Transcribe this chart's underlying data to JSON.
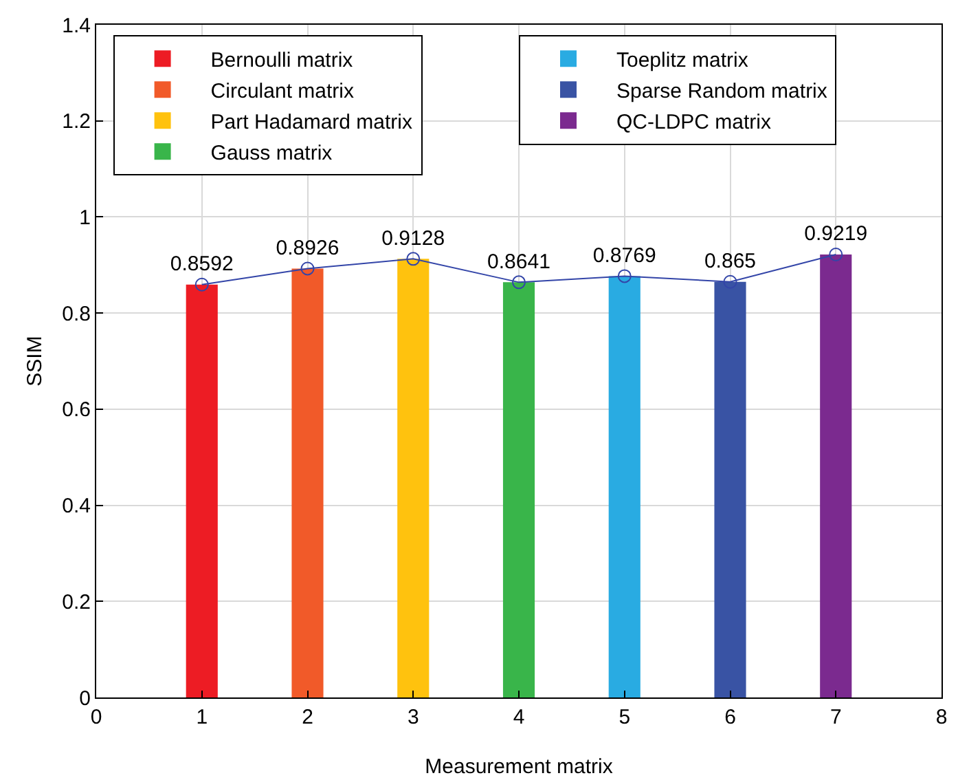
{
  "chart_data": {
    "type": "bar",
    "xlabel": "Measurement matrix",
    "ylabel": "SSIM",
    "xlim": [
      0,
      8
    ],
    "xticks": [
      0,
      1,
      2,
      3,
      4,
      5,
      6,
      7,
      8
    ],
    "ylim": [
      0,
      1.4
    ],
    "yticks": [
      0,
      0.2,
      0.4,
      0.6,
      0.8,
      1,
      1.2,
      1.4
    ],
    "grid": true,
    "legend": "top left",
    "series": [
      {
        "name": "Bernoulli matrix",
        "color": "#ed1c24",
        "x": [
          1
        ],
        "values": [
          0.8592
        ]
      },
      {
        "name": "Circulant matrix",
        "color": "#f15a29",
        "x": [
          2
        ],
        "values": [
          0.8926
        ]
      },
      {
        "name": "Part Hadamard matrix",
        "color": "#ffc20e",
        "x": [
          3
        ],
        "values": [
          0.9128
        ]
      },
      {
        "name": "Gauss matrix",
        "color": "#39b54a",
        "x": [
          4
        ],
        "values": [
          0.8641
        ]
      },
      {
        "name": "Toeplitz matrix",
        "color": "#29abe2",
        "x": [
          5
        ],
        "values": [
          0.8769
        ]
      },
      {
        "name": "Sparse Random matrix",
        "color": "#3953a4",
        "x": [
          6
        ],
        "values": [
          0.865
        ]
      },
      {
        "name": "QC-LDPC matrix",
        "color": "#7b2a8f",
        "x": [
          7
        ],
        "values": [
          0.9219
        ]
      },
      {
        "type": "line",
        "color": "#3345a8",
        "marker": "circle",
        "x": [
          1,
          2,
          3,
          4,
          5,
          6,
          7
        ],
        "values": [
          0.8592,
          0.8926,
          0.9128,
          0.8641,
          0.8769,
          0.865,
          0.9219
        ],
        "value_labels": [
          "0.8592",
          "0.8926",
          "0.9128",
          "0.8641",
          "0.8769",
          "0.865",
          "0.9219"
        ]
      }
    ]
  }
}
